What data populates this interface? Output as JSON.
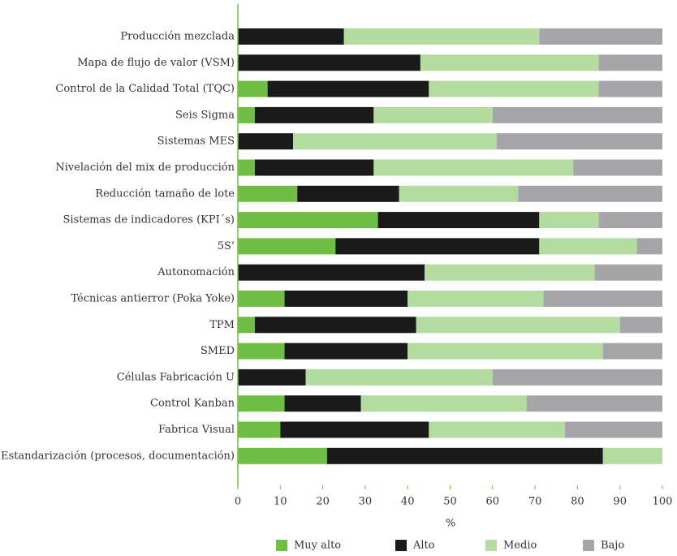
{
  "chart_data": {
    "type": "stacked-bar-horizontal",
    "xlabel": "%",
    "categories": [
      "Producción mezclada",
      "Mapa de flujo de valor (VSM)",
      "Control de la Calidad Total (TQC)",
      "Seis Sigma",
      "Sistemas MES",
      "Nivelación del mix de producción",
      "Reducción tamaño de lote",
      "Sistemas de indicadores (KPI´s)",
      "5S’",
      "Autonomación",
      "Técnicas antierror (Poka Yoke)",
      "TPM",
      "SMED",
      "Células Fabricación U",
      "Control Kanban",
      "Fabrica Visual",
      "Estandarización (procesos, documentación)"
    ],
    "series": [
      {
        "name": "Muy alto",
        "color": "#6fbf44",
        "values": [
          0,
          0,
          7,
          4,
          0,
          4,
          14,
          33,
          23,
          0,
          11,
          4,
          11,
          0,
          11,
          10,
          21
        ]
      },
      {
        "name": "Alto",
        "color": "#1a1a1a",
        "values": [
          25,
          43,
          38,
          28,
          13,
          28,
          24,
          38,
          48,
          44,
          29,
          38,
          29,
          16,
          18,
          35,
          65
        ]
      },
      {
        "name": "Medio",
        "color": "#b5dca0",
        "values": [
          46,
          42,
          40,
          28,
          48,
          47,
          28,
          14,
          23,
          40,
          32,
          48,
          46,
          44,
          39,
          32,
          14
        ]
      },
      {
        "name": "Bajo",
        "color": "#a6a6aa",
        "values": [
          29,
          15,
          15,
          40,
          39,
          21,
          34,
          15,
          6,
          16,
          28,
          10,
          14,
          40,
          32,
          23,
          0
        ]
      }
    ],
    "xlim": [
      0,
      100
    ],
    "xticks": [
      0,
      10,
      20,
      30,
      40,
      50,
      60,
      70,
      80,
      90,
      100
    ]
  }
}
